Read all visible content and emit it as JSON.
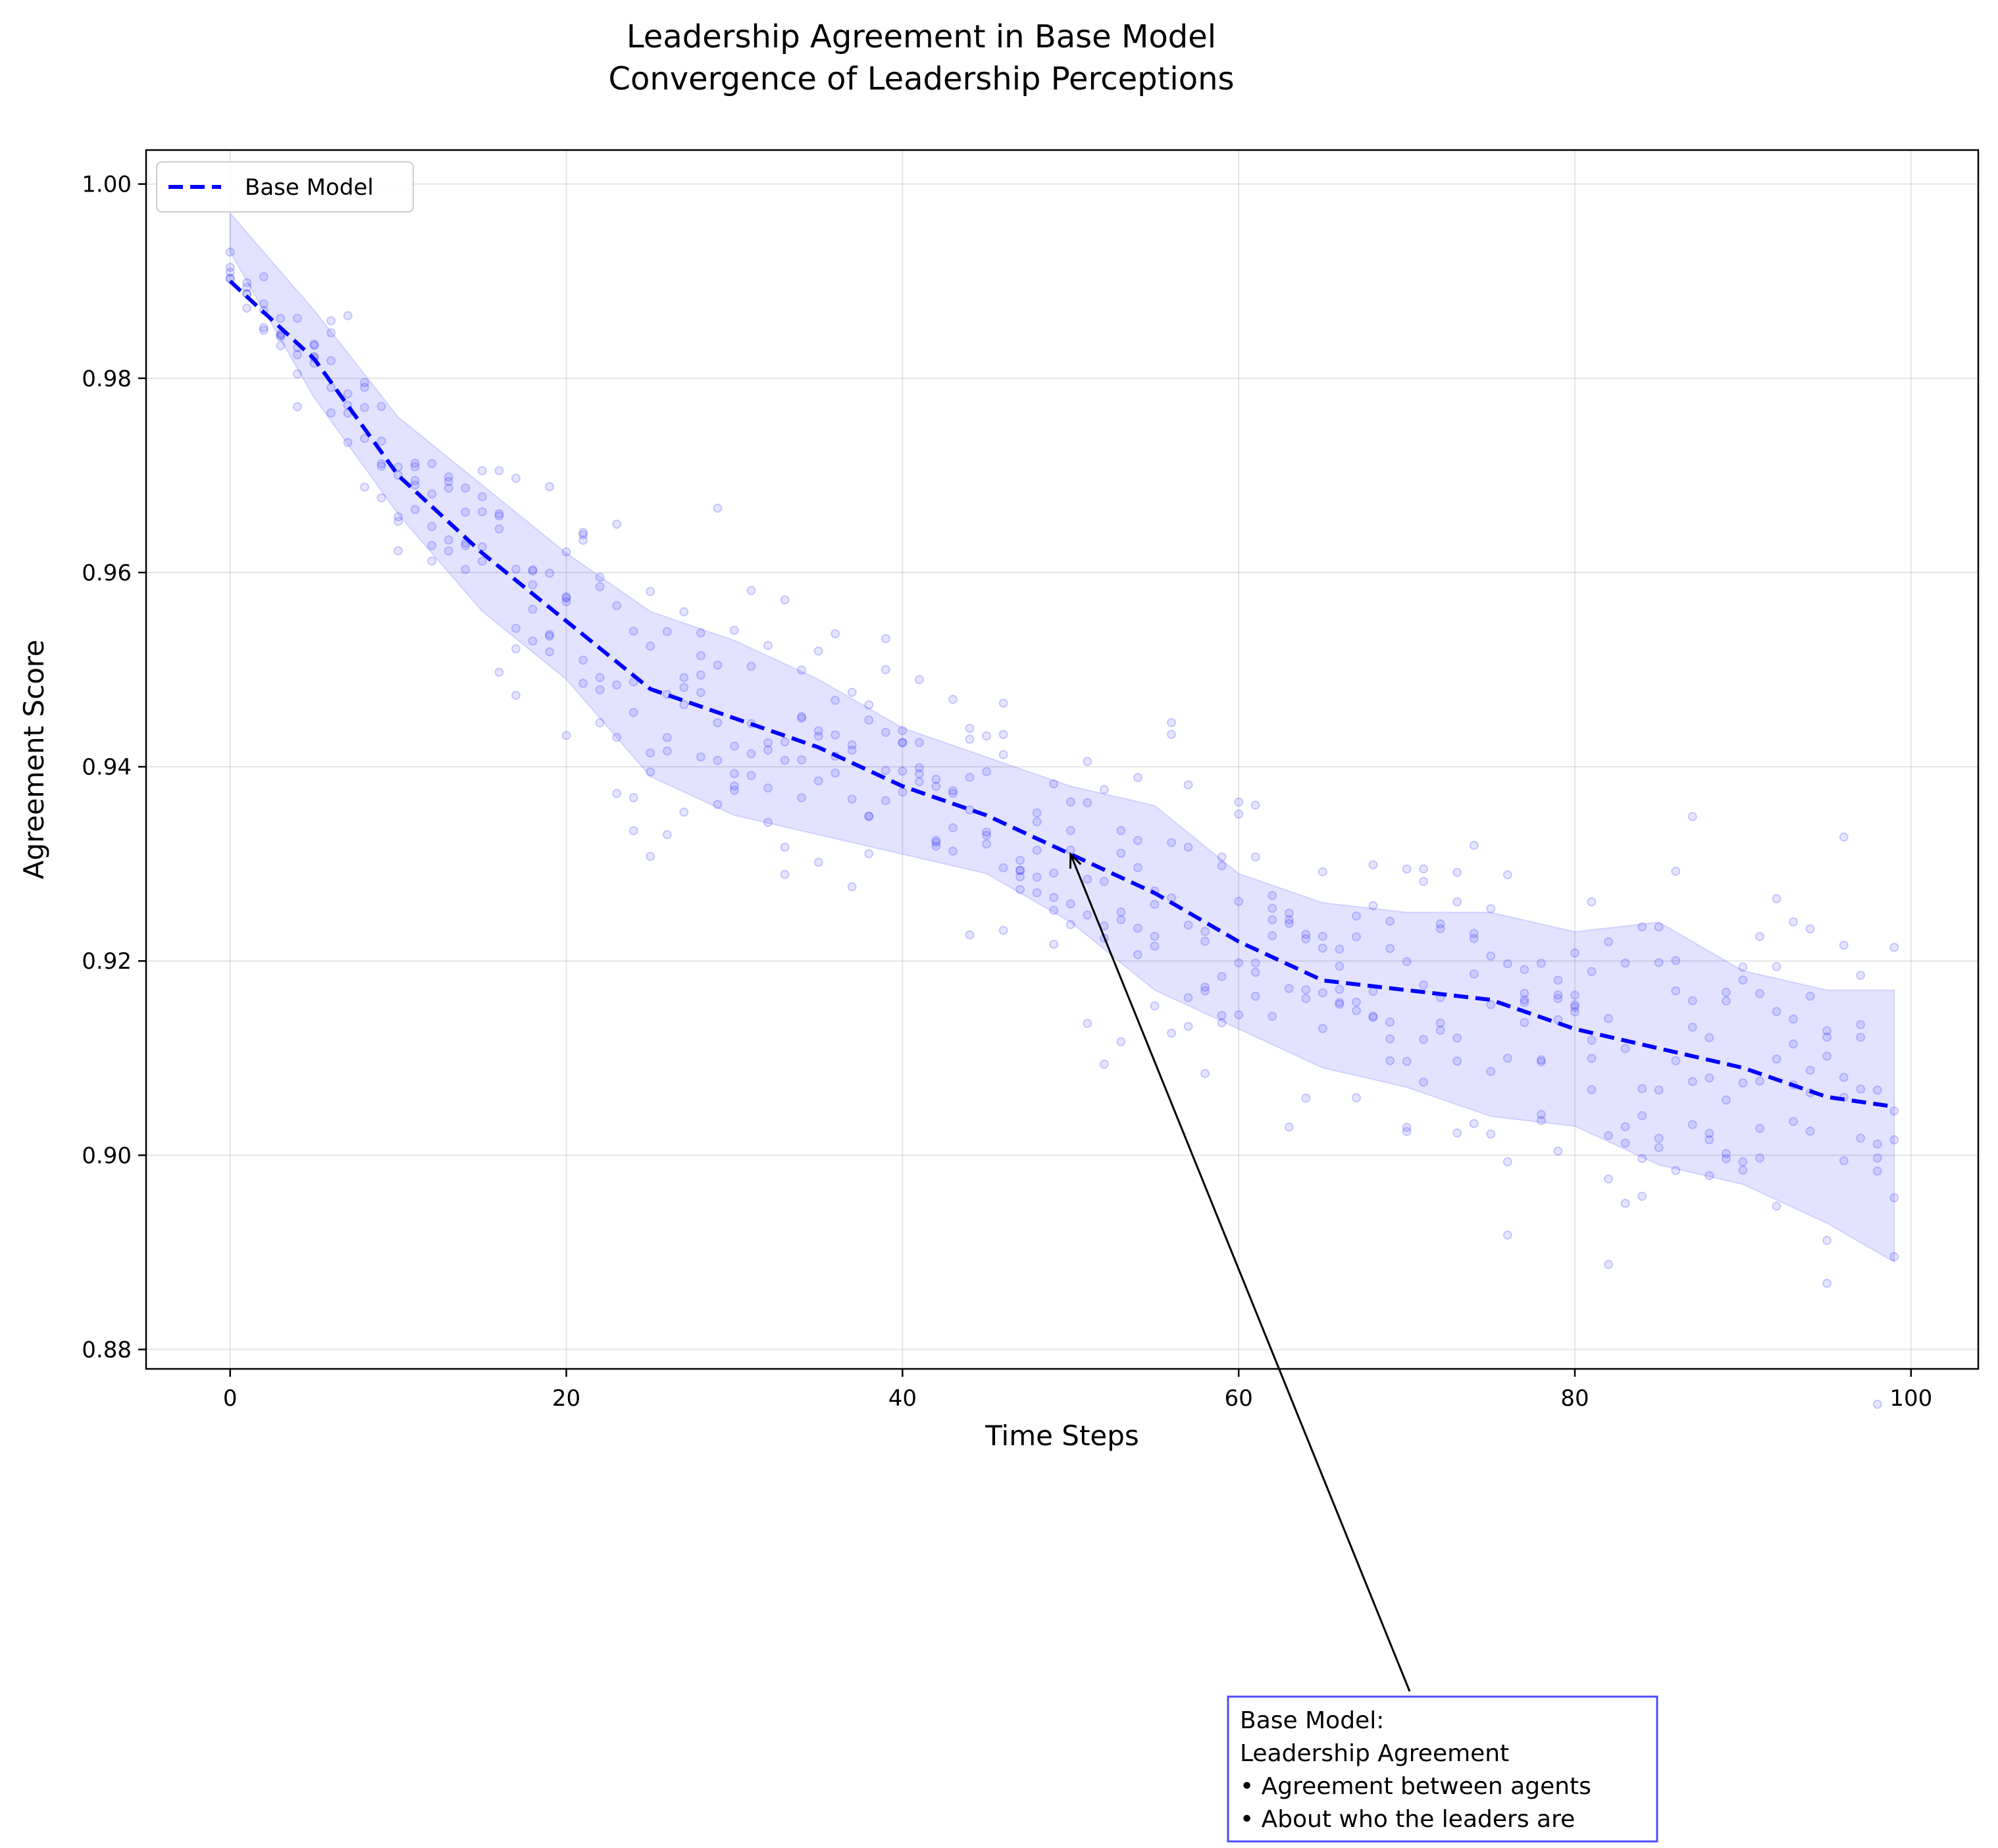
{
  "chart_data": {
    "type": "line",
    "title": "Leadership Agreement in Base Model",
    "subtitle": "Convergence of Leadership Perceptions",
    "xlabel": "Time Steps",
    "ylabel": "Agreement Score",
    "xlim": [
      -5,
      104
    ],
    "ylim": [
      0.878,
      1.0035
    ],
    "x_ticks": [
      0,
      20,
      40,
      60,
      80,
      100
    ],
    "y_ticks": [
      0.88,
      0.9,
      0.92,
      0.94,
      0.96,
      0.98,
      1.0
    ],
    "x_tick_labels": [
      "0",
      "20",
      "40",
      "60",
      "80",
      "100"
    ],
    "y_tick_labels": [
      "0.88",
      "0.90",
      "0.92",
      "0.94",
      "0.96",
      "0.98",
      "1.00"
    ],
    "grid": true,
    "legend": {
      "position": "top-left",
      "entries": [
        "Base Model"
      ]
    },
    "series": [
      {
        "name": "Base Model",
        "style": "dashed",
        "color": "#0000ff",
        "x": [
          0,
          5,
          10,
          15,
          20,
          25,
          30,
          35,
          40,
          45,
          50,
          55,
          60,
          65,
          70,
          75,
          80,
          85,
          90,
          95,
          99
        ],
        "y": [
          0.99,
          0.982,
          0.97,
          0.962,
          0.955,
          0.948,
          0.945,
          0.942,
          0.938,
          0.935,
          0.931,
          0.927,
          0.922,
          0.918,
          0.917,
          0.916,
          0.913,
          0.911,
          0.909,
          0.906,
          0.905
        ]
      }
    ],
    "band": {
      "color": "#c8c8ff",
      "x": [
        0,
        5,
        10,
        15,
        20,
        25,
        30,
        35,
        40,
        45,
        50,
        55,
        60,
        65,
        70,
        75,
        80,
        85,
        90,
        95,
        99
      ],
      "upper": [
        0.997,
        0.987,
        0.976,
        0.969,
        0.962,
        0.956,
        0.953,
        0.949,
        0.944,
        0.941,
        0.938,
        0.936,
        0.929,
        0.926,
        0.925,
        0.925,
        0.923,
        0.924,
        0.919,
        0.917,
        0.917
      ],
      "lower": [
        0.993,
        0.978,
        0.966,
        0.956,
        0.949,
        0.939,
        0.935,
        0.933,
        0.931,
        0.929,
        0.924,
        0.917,
        0.913,
        0.909,
        0.907,
        0.904,
        0.903,
        0.899,
        0.897,
        0.893,
        0.889
      ]
    },
    "scatter": {
      "description_color": "#a0a0ff",
      "points_per_step": 5,
      "steps": [
        0,
        99
      ]
    },
    "annotation": {
      "lines": [
        "Base Model:",
        "Leadership Agreement",
        "• Agreement between agents",
        "• About who the leaders are"
      ],
      "arrow_target": {
        "x": 50,
        "y": 0.931
      }
    }
  }
}
